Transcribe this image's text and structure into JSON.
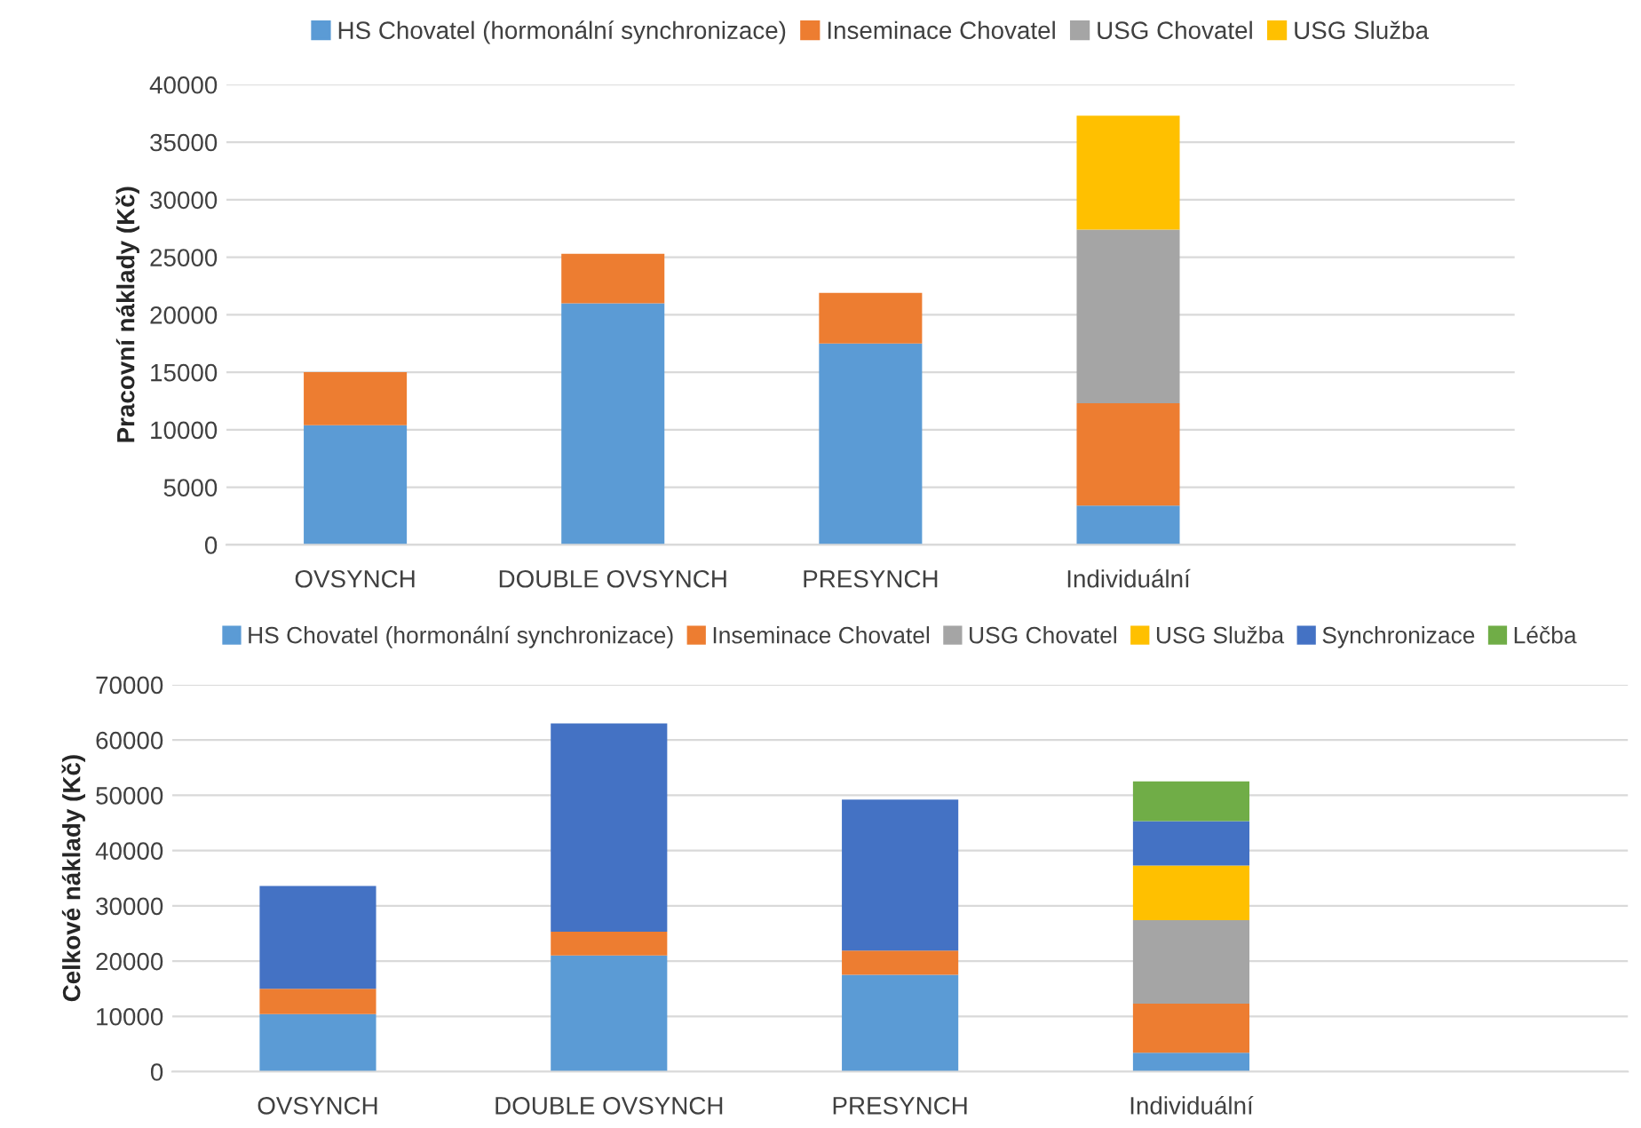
{
  "chart_data": [
    {
      "type": "bar",
      "stacked": true,
      "ylabel": "Pracovní náklady (Kč)",
      "categories": [
        "OVSYNCH",
        "DOUBLE OVSYNCH",
        "PRESYNCH",
        "Individuální",
        null
      ],
      "series": [
        {
          "name": "HS Chovatel (hormonální synchronizace)",
          "color": "#5b9bd5",
          "values": [
            10400,
            21000,
            17500,
            3400,
            null
          ]
        },
        {
          "name": "Inseminace Chovatel",
          "color": "#ed7d31",
          "values": [
            4600,
            4300,
            4400,
            8900,
            null
          ]
        },
        {
          "name": "USG Chovatel",
          "color": "#a5a5a5",
          "values": [
            0,
            0,
            0,
            15100,
            null
          ]
        },
        {
          "name": "USG Služba",
          "color": "#ffc000",
          "values": [
            0,
            0,
            0,
            9900,
            null
          ]
        }
      ],
      "ylim": [
        0,
        40000
      ],
      "yticks": [
        0,
        5000,
        10000,
        15000,
        20000,
        25000,
        30000,
        35000,
        40000
      ],
      "grid": "y",
      "legend": "top"
    },
    {
      "type": "bar",
      "stacked": true,
      "ylabel": "Celkové náklady (Kč)",
      "categories": [
        "OVSYNCH",
        "DOUBLE OVSYNCH",
        "PRESYNCH",
        "Individuální",
        null
      ],
      "series": [
        {
          "name": "HS Chovatel (hormonální synchronizace)",
          "color": "#5b9bd5",
          "values": [
            10400,
            21000,
            17500,
            3400,
            null
          ]
        },
        {
          "name": "Inseminace Chovatel",
          "color": "#ed7d31",
          "values": [
            4600,
            4300,
            4400,
            8900,
            null
          ]
        },
        {
          "name": "USG Chovatel",
          "color": "#a5a5a5",
          "values": [
            0,
            0,
            0,
            15100,
            null
          ]
        },
        {
          "name": "USG Služba",
          "color": "#ffc000",
          "values": [
            0,
            0,
            0,
            9900,
            null
          ]
        },
        {
          "name": "Synchronizace",
          "color": "#4472c4",
          "values": [
            18600,
            37700,
            27300,
            8000,
            null
          ]
        },
        {
          "name": "Léčba",
          "color": "#70ad47",
          "values": [
            0,
            0,
            0,
            7200,
            null
          ]
        }
      ],
      "ylim": [
        0,
        70000
      ],
      "yticks": [
        0,
        10000,
        20000,
        30000,
        40000,
        50000,
        60000,
        70000
      ],
      "grid": "y",
      "legend": "top"
    }
  ]
}
